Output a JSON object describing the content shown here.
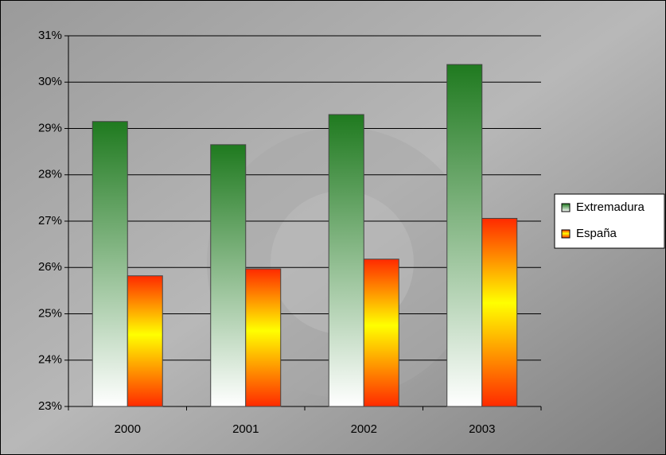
{
  "chart_data": {
    "type": "bar",
    "categories": [
      "2000",
      "2001",
      "2002",
      "2003"
    ],
    "series": [
      {
        "name": "Extremadura",
        "color": "#1f7a1f",
        "values": [
          29.15,
          28.65,
          29.3,
          30.38
        ]
      },
      {
        "name": "España",
        "color": "#ffff00",
        "values": [
          25.82,
          25.97,
          26.18,
          27.06
        ]
      }
    ],
    "ylim": [
      23,
      31
    ],
    "yticks": [
      {
        "value": 23,
        "label": "23%"
      },
      {
        "value": 24,
        "label": "24%"
      },
      {
        "value": 25,
        "label": "25%"
      },
      {
        "value": 26,
        "label": "26%"
      },
      {
        "value": 27,
        "label": "27%"
      },
      {
        "value": 28,
        "label": "28%"
      },
      {
        "value": 29,
        "label": "29%"
      },
      {
        "value": 30,
        "label": "30%"
      },
      {
        "value": 31,
        "label": "31%"
      }
    ],
    "grid": true,
    "legend": "right"
  }
}
